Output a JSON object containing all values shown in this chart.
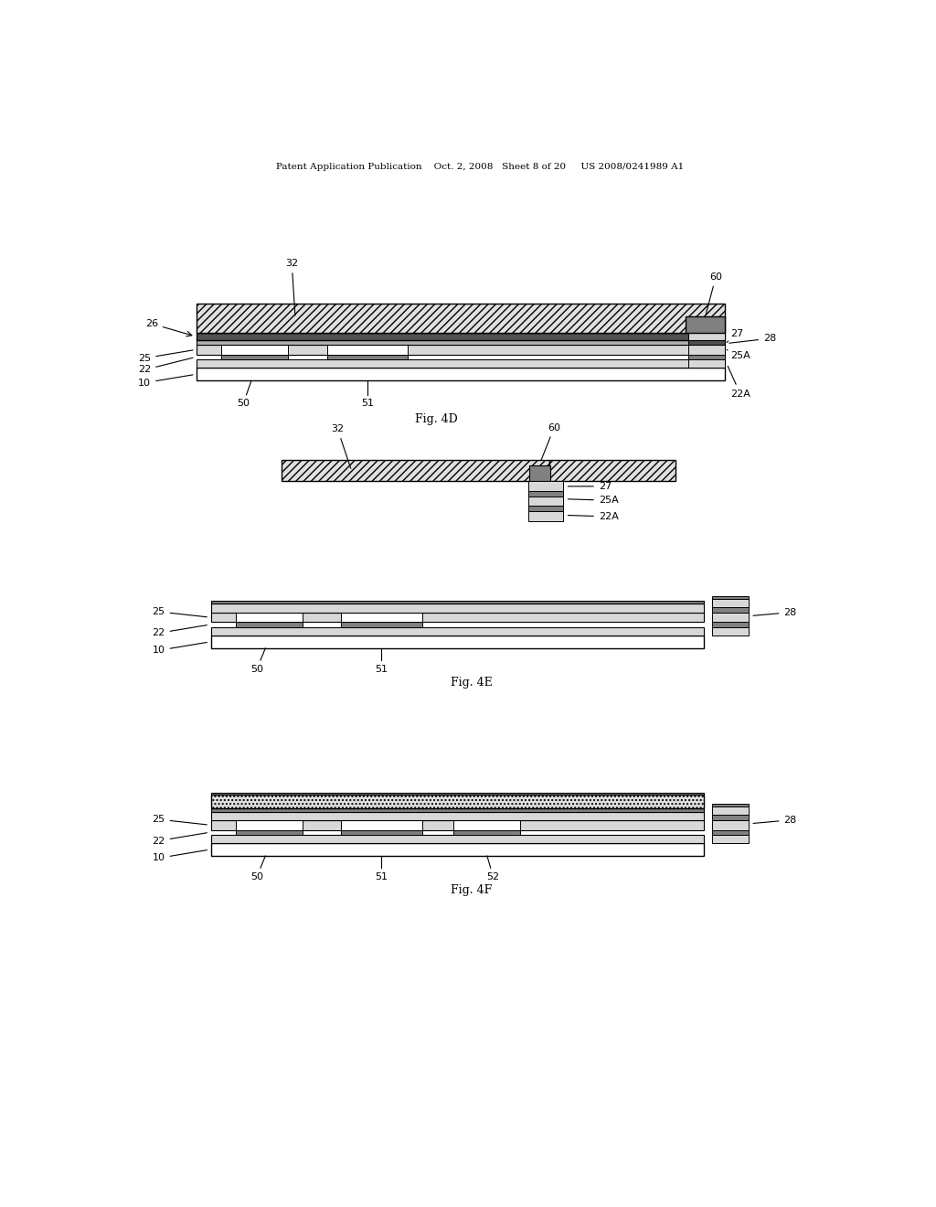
{
  "bg_color": "#ffffff",
  "header_text": "Patent Application Publication    Oct. 2, 2008   Sheet 8 of 20     US 2008/0241989 A1",
  "fig4D_label": "Fig. 4D",
  "fig4E_label": "Fig. 4E",
  "fig4F_label": "Fig. 4F",
  "colors": {
    "white": "#ffffff",
    "light_gray": "#d8d8d8",
    "medium_gray": "#b0b0b0",
    "dark_gray": "#808080",
    "darker_gray": "#505050",
    "black": "#000000",
    "hatched_light": "#e0e0e0",
    "hatched_dark": "#aaaaaa"
  }
}
